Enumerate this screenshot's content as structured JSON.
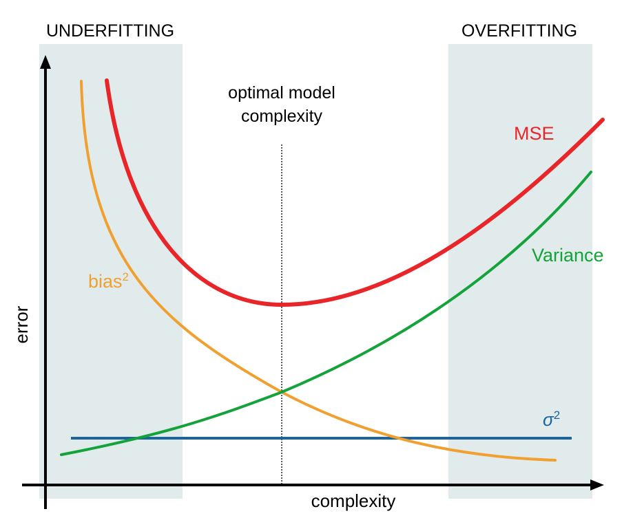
{
  "regions": {
    "left_label": "UNDERFITTING",
    "right_label": "OVERFITTING",
    "shade_color": "#e1ebeb"
  },
  "annotation": {
    "line1": "optimal model",
    "line2": "complexity"
  },
  "axes": {
    "xlabel": "complexity",
    "ylabel": "error"
  },
  "curves": {
    "mse": {
      "label": "MSE",
      "color": "#e8262a"
    },
    "variance": {
      "label": "Variance",
      "color": "#14a23a"
    },
    "bias": {
      "label": "bias",
      "superscript": "2",
      "color": "#f0a030"
    },
    "noise": {
      "label": "σ",
      "superscript": "2",
      "color": "#1a64a0"
    }
  }
}
